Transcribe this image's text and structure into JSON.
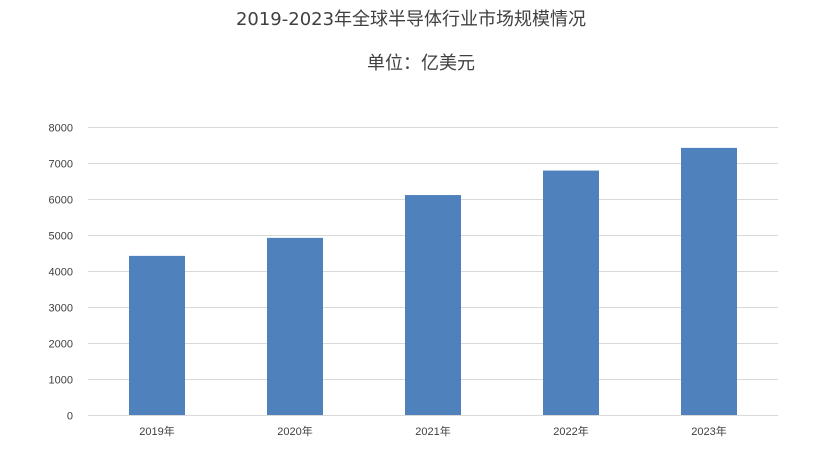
{
  "chart_data": {
    "type": "bar",
    "title": "2019-2023年全球半导体行业市场规模情况",
    "subtitle": "单位：亿美元",
    "categories": [
      "2019年",
      "2020年",
      "2021年",
      "2022年",
      "2023年"
    ],
    "values": [
      4420,
      4920,
      6110,
      6790,
      7420
    ],
    "ylim": [
      0,
      8000
    ],
    "yticks": [
      0,
      1000,
      2000,
      3000,
      4000,
      5000,
      6000,
      7000,
      8000
    ],
    "grid": true,
    "legend": "none",
    "colors": {
      "bar": "#4f81bd",
      "grid": "#d9d9d9",
      "text": "#404040"
    }
  }
}
